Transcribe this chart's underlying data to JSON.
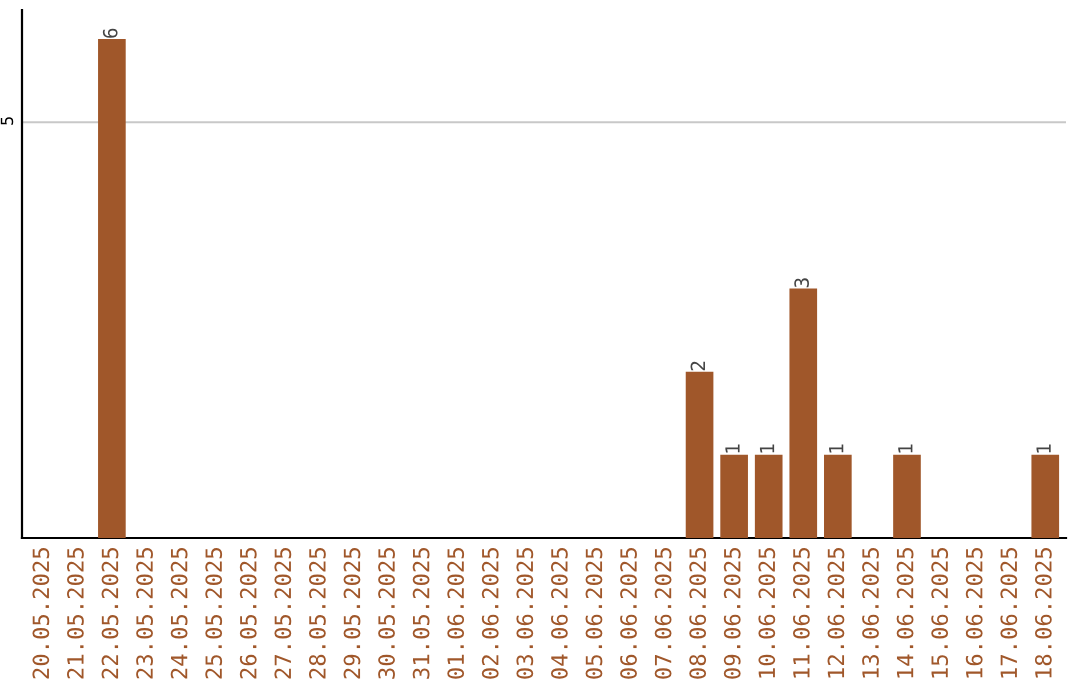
{
  "chart_data": {
    "type": "bar",
    "categories": [
      "20.05.2025",
      "21.05.2025",
      "22.05.2025",
      "23.05.2025",
      "24.05.2025",
      "25.05.2025",
      "26.05.2025",
      "27.05.2025",
      "28.05.2025",
      "29.05.2025",
      "30.05.2025",
      "31.05.2025",
      "01.06.2025",
      "02.06.2025",
      "03.06.2025",
      "04.06.2025",
      "05.06.2025",
      "06.06.2025",
      "07.06.2025",
      "08.06.2025",
      "09.06.2025",
      "10.06.2025",
      "11.06.2025",
      "12.06.2025",
      "13.06.2025",
      "14.06.2025",
      "15.06.2025",
      "16.06.2025",
      "17.06.2025",
      "18.06.2025"
    ],
    "values": [
      0,
      0,
      6,
      0,
      0,
      0,
      0,
      0,
      0,
      0,
      0,
      0,
      0,
      0,
      0,
      0,
      0,
      0,
      0,
      2,
      1,
      1,
      3,
      1,
      0,
      1,
      0,
      0,
      0,
      1
    ],
    "value_labels": [
      null,
      null,
      "6",
      null,
      null,
      null,
      null,
      null,
      null,
      null,
      null,
      null,
      null,
      null,
      null,
      null,
      null,
      null,
      null,
      "2",
      "1",
      "1",
      "3",
      "1",
      null,
      "1",
      null,
      null,
      null,
      "1"
    ],
    "color": "#a0572a",
    "ylim": [
      0,
      6.35
    ],
    "yticks": [
      5
    ],
    "grid": "y"
  }
}
